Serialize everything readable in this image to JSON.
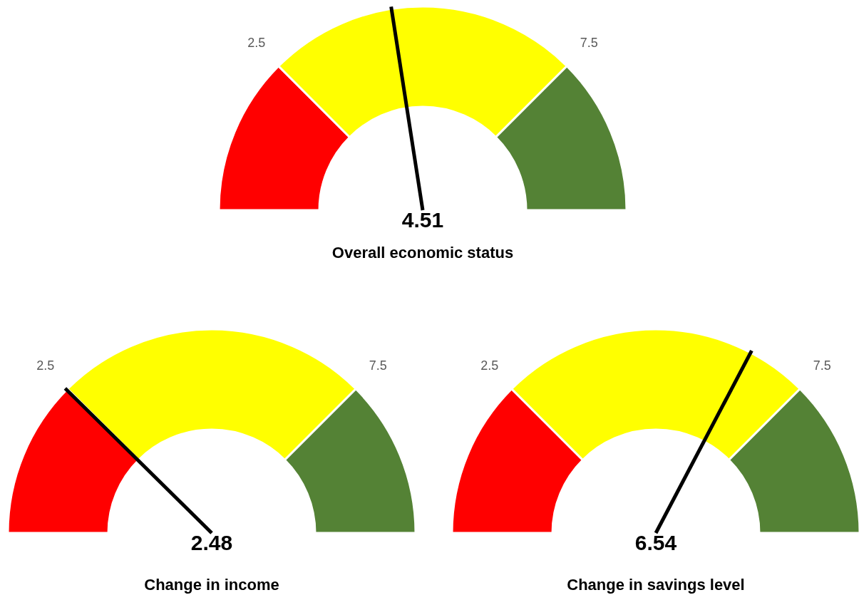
{
  "chart_data": [
    {
      "type": "donut",
      "title": "Overall economic status",
      "categories": [
        null,
        null,
        null
      ],
      "values": [
        25,
        50,
        25
      ],
      "colors": [
        "#ff0000",
        "#ffff00",
        "#548235"
      ],
      "annotations": [
        "2.5",
        "7.5",
        "4.51"
      ]
    },
    {
      "type": "donut",
      "title": "Change in income",
      "categories": [
        null,
        null,
        null
      ],
      "values": [
        25,
        50,
        25
      ],
      "colors": [
        "#ff0000",
        "#ffff00",
        "#548235"
      ],
      "annotations": [
        "2.5",
        "7.5",
        "2.48"
      ]
    },
    {
      "type": "donut",
      "title": "Change in savings level",
      "categories": [
        null,
        null,
        null
      ],
      "values": [
        25,
        50,
        25
      ],
      "colors": [
        "#ff0000",
        "#ffff00",
        "#548235"
      ],
      "annotations": [
        "2.5",
        "7.5",
        "6.54"
      ]
    }
  ]
}
